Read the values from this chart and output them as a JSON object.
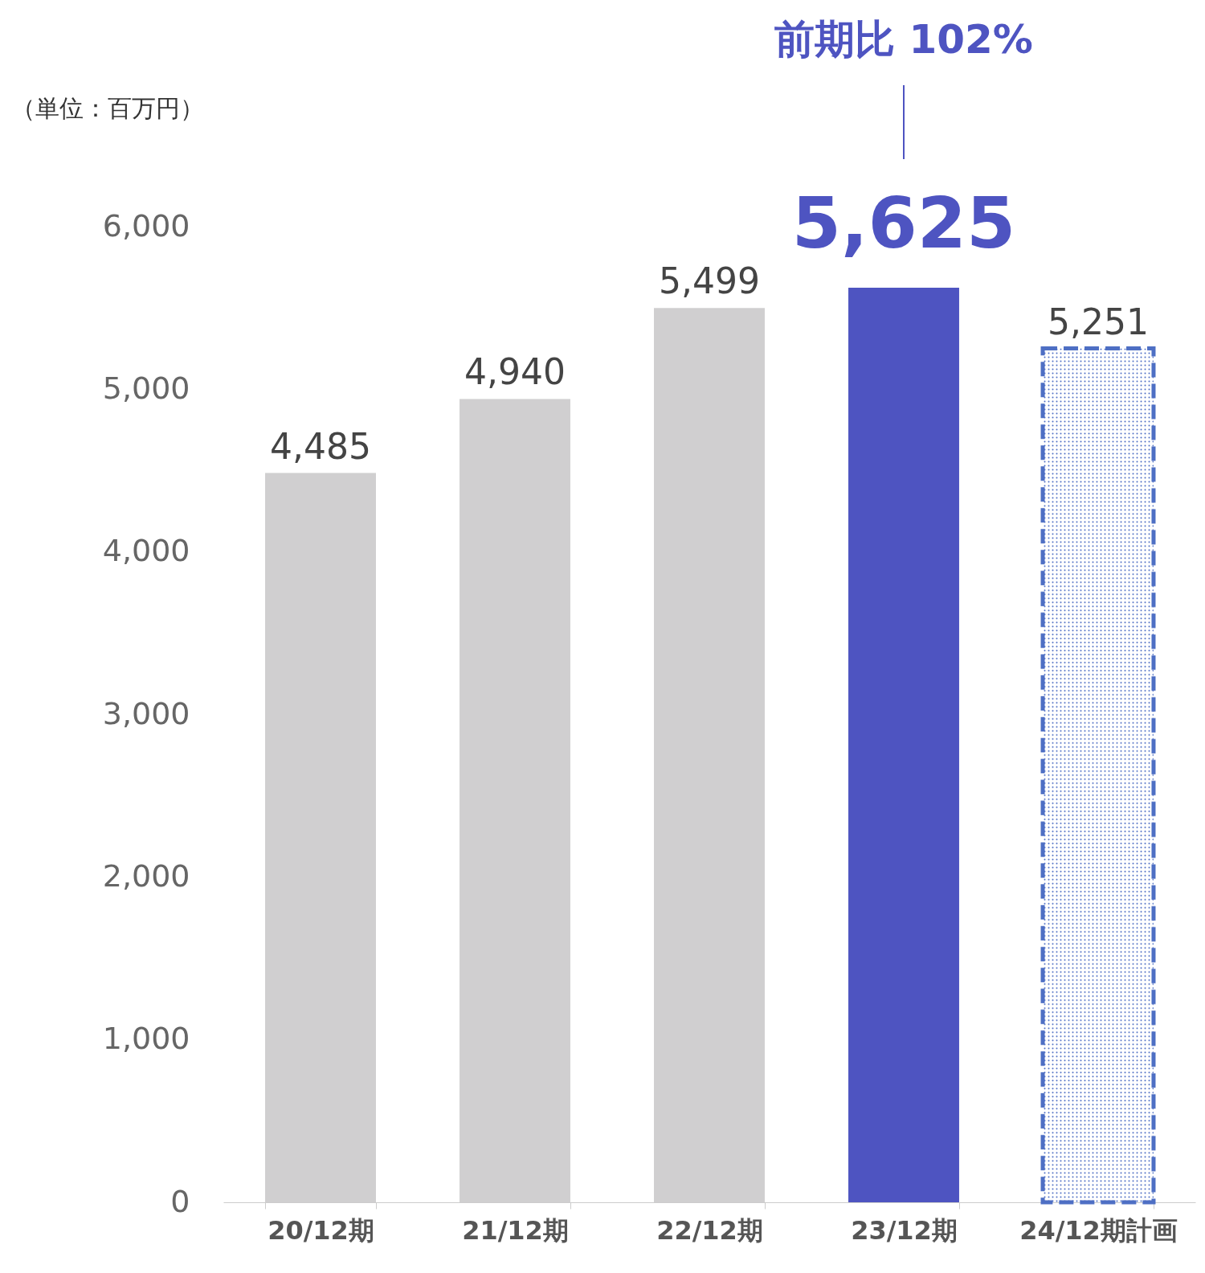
{
  "chart_data": {
    "type": "bar",
    "ylabel": "（単位：百万円）",
    "categories": [
      "20/12期",
      "21/12期",
      "22/12期",
      "23/12期",
      "24/12期計画"
    ],
    "values": [
      4485,
      4940,
      5499,
      5625,
      5251
    ],
    "colors": [
      "#d0cfd0",
      "#d0cfd0",
      "#d0cfd0",
      "#4e54c1",
      "#4e6fc4"
    ],
    "value_labels": [
      "4,485",
      "4,940",
      "5,499",
      "5,625",
      "5,251"
    ],
    "ylim": [
      0,
      6000
    ],
    "yticks": [
      0,
      {
        "value": 1000,
        "label": "1,000"
      },
      {
        "value": 2000,
        "label": "2,000"
      },
      {
        "value": 3000,
        "label": "3,000"
      },
      {
        "value": 4000,
        "label": "4,000"
      },
      {
        "value": 5000,
        "label": "5,000"
      },
      {
        "value": 6000,
        "label": "6,000"
      }
    ],
    "grid": false,
    "annotations": [
      "前期比  102%"
    ]
  }
}
